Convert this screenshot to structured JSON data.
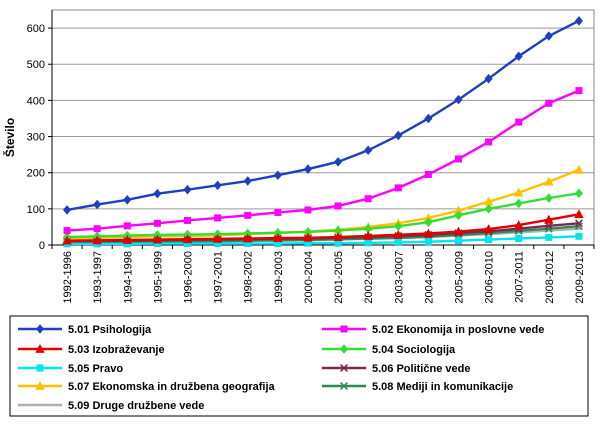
{
  "chart_data": {
    "type": "line",
    "title": "",
    "xlabel": "",
    "ylabel": "Število",
    "ylim": [
      0,
      650
    ],
    "yticks": [
      0,
      100,
      200,
      300,
      400,
      500,
      600
    ],
    "grid": true,
    "legend_position": "bottom",
    "categories": [
      "1992-1996",
      "1993-1997",
      "1994-1998",
      "1995-1999",
      "1996-2000",
      "1997-2001",
      "1998-2002",
      "1999-2003",
      "2000-2004",
      "2001-2005",
      "2002-2006",
      "2003-2007",
      "2004-2008",
      "2005-2009",
      "2006-2010",
      "2007-2011",
      "2008-2012",
      "2009-2013"
    ],
    "series": [
      {
        "name": "5.01 Psihologija",
        "color": "#1f3fbf",
        "marker": "diamond",
        "values": [
          97,
          112,
          125,
          142,
          153,
          165,
          177,
          193,
          210,
          230,
          262,
          303,
          350,
          402,
          460,
          522,
          578,
          620
        ]
      },
      {
        "name": "5.02 Ekonomija in poslovne vede",
        "color": "#ff00ff",
        "marker": "square",
        "values": [
          40,
          45,
          53,
          60,
          68,
          75,
          82,
          90,
          97,
          108,
          128,
          158,
          195,
          238,
          285,
          340,
          392,
          427
        ]
      },
      {
        "name": "5.03 Izobraževanje",
        "color": "#e00000",
        "marker": "triangle",
        "values": [
          12,
          13,
          14,
          15,
          16,
          17,
          18,
          19,
          20,
          22,
          25,
          28,
          32,
          37,
          44,
          55,
          70,
          85
        ]
      },
      {
        "name": "5.04 Sociologija",
        "color": "#33dd33",
        "marker": "diamond",
        "values": [
          22,
          24,
          26,
          28,
          29,
          30,
          32,
          34,
          36,
          40,
          45,
          52,
          63,
          82,
          100,
          115,
          130,
          143
        ]
      },
      {
        "name": "5.05 Pravo",
        "color": "#00e5ee",
        "marker": "square",
        "values": [
          3,
          3,
          3,
          4,
          4,
          4,
          4,
          4,
          5,
          5,
          6,
          7,
          9,
          12,
          15,
          18,
          21,
          24
        ]
      },
      {
        "name": "5.06 Politične vede",
        "color": "#7a2a4a",
        "marker": "x",
        "values": [
          10,
          11,
          12,
          13,
          14,
          15,
          16,
          17,
          18,
          20,
          22,
          25,
          28,
          33,
          38,
          45,
          53,
          60
        ]
      },
      {
        "name": "5.07 Ekonomska in družbena geografija",
        "color": "#ffc000",
        "marker": "triangle",
        "values": [
          18,
          20,
          22,
          24,
          25,
          27,
          30,
          33,
          37,
          42,
          50,
          60,
          75,
          95,
          120,
          145,
          175,
          208
        ]
      },
      {
        "name": "5.08 Mediji in komunikacije",
        "color": "#2e8b57",
        "marker": "x",
        "values": [
          6,
          7,
          8,
          9,
          10,
          11,
          12,
          13,
          14,
          16,
          18,
          20,
          23,
          28,
          33,
          39,
          45,
          52
        ]
      },
      {
        "name": "5.09 Druge družbene vede",
        "color": "#b0b0b0",
        "marker": "dash",
        "values": [
          5,
          6,
          7,
          8,
          9,
          10,
          11,
          12,
          13,
          15,
          17,
          19,
          22,
          26,
          30,
          35,
          40,
          45
        ]
      }
    ]
  }
}
